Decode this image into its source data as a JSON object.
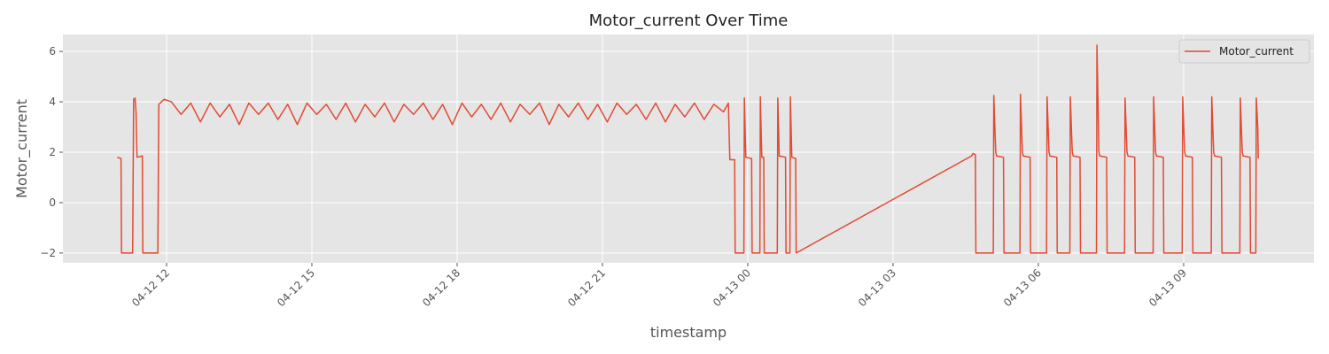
{
  "chart_data": {
    "type": "line",
    "title": "Motor_current Over Time",
    "xlabel": "timestamp",
    "ylabel": "Motor_current",
    "x": [
      10.98,
      11.06,
      11.07,
      11.3,
      11.32,
      11.35,
      11.37,
      11.39,
      11.5,
      11.51,
      11.82,
      11.84,
      11.95,
      12.1,
      12.3,
      12.5,
      12.7,
      12.9,
      13.1,
      13.3,
      13.5,
      13.7,
      13.9,
      14.1,
      14.3,
      14.5,
      14.7,
      14.9,
      15.1,
      15.3,
      15.5,
      15.7,
      15.9,
      16.1,
      16.3,
      16.5,
      16.7,
      16.9,
      17.1,
      17.3,
      17.5,
      17.7,
      17.9,
      18.1,
      18.3,
      18.5,
      18.7,
      18.9,
      19.1,
      19.3,
      19.5,
      19.7,
      19.9,
      20.1,
      20.3,
      20.5,
      20.7,
      20.9,
      21.1,
      21.3,
      21.5,
      21.7,
      21.9,
      22.1,
      22.3,
      22.5,
      22.7,
      22.9,
      23.1,
      23.3,
      23.5,
      23.6,
      23.63,
      23.73,
      23.74,
      23.92,
      23.93,
      23.96,
      24.08,
      24.09,
      24.25,
      24.26,
      24.29,
      24.33,
      24.34,
      24.61,
      24.62,
      24.65,
      24.78,
      24.79,
      24.87,
      24.88,
      24.91,
      24.99,
      25.0,
      28.62,
      28.65,
      28.7,
      28.71,
      29.07,
      29.08,
      29.12,
      29.14,
      29.28,
      29.29,
      29.62,
      29.63,
      29.67,
      29.69,
      29.83,
      29.84,
      30.17,
      30.18,
      30.22,
      30.24,
      30.38,
      30.39,
      30.65,
      30.66,
      30.7,
      30.72,
      30.86,
      30.87,
      31.2,
      31.21,
      31.25,
      31.27,
      31.41,
      31.42,
      31.78,
      31.79,
      31.83,
      31.85,
      31.99,
      32.0,
      32.37,
      32.38,
      32.42,
      32.44,
      32.58,
      32.59,
      32.97,
      32.98,
      33.02,
      33.04,
      33.18,
      33.19,
      33.57,
      33.58,
      33.62,
      33.64,
      33.78,
      33.79,
      34.16,
      34.17,
      34.21,
      34.23,
      34.37,
      34.38,
      34.49,
      34.5,
      34.53,
      34.54
    ],
    "series": [
      {
        "name": "Motor_current",
        "color": "#E24A33",
        "values": [
          1.8,
          1.75,
          -2,
          -2,
          4.1,
          4.15,
          3.6,
          1.8,
          1.85,
          -2,
          -2,
          3.9,
          4.1,
          4.0,
          3.5,
          3.95,
          3.2,
          3.95,
          3.4,
          3.9,
          3.1,
          3.95,
          3.5,
          3.95,
          3.3,
          3.9,
          3.1,
          3.95,
          3.5,
          3.9,
          3.3,
          3.95,
          3.2,
          3.9,
          3.4,
          3.95,
          3.2,
          3.9,
          3.5,
          3.95,
          3.3,
          3.9,
          3.1,
          3.95,
          3.4,
          3.9,
          3.3,
          3.95,
          3.2,
          3.9,
          3.5,
          3.95,
          3.1,
          3.9,
          3.4,
          3.95,
          3.3,
          3.9,
          3.2,
          3.95,
          3.5,
          3.9,
          3.3,
          3.95,
          3.2,
          3.9,
          3.4,
          3.95,
          3.3,
          3.9,
          3.6,
          3.95,
          1.7,
          1.7,
          -2,
          -2,
          4.15,
          1.8,
          1.75,
          -2,
          -2,
          4.2,
          1.8,
          1.8,
          -2,
          -2,
          4.15,
          1.85,
          1.8,
          -2,
          -2,
          4.2,
          1.8,
          1.75,
          -2,
          1.85,
          1.95,
          1.9,
          -2,
          -2,
          4.25,
          2.0,
          1.85,
          1.8,
          -2,
          -2,
          4.3,
          2.0,
          1.85,
          1.8,
          -2,
          -2,
          4.2,
          2.0,
          1.85,
          1.8,
          -2,
          -2,
          4.2,
          2.0,
          1.85,
          1.8,
          -2,
          -2,
          6.25,
          2.0,
          1.85,
          1.8,
          -2,
          -2,
          4.15,
          2.0,
          1.85,
          1.8,
          -2,
          -2,
          4.2,
          2.0,
          1.85,
          1.8,
          -2,
          -2,
          4.2,
          2.0,
          1.85,
          1.8,
          -2,
          -2,
          4.2,
          2.0,
          1.85,
          1.8,
          -2,
          -2,
          4.15,
          2.0,
          1.85,
          1.8,
          -2,
          -2,
          4.15,
          3.0,
          1.75
        ]
      }
    ],
    "xlim": [
      9.86,
      35.69
    ],
    "xticks": [
      {
        "value": 12,
        "label": "04-12 12"
      },
      {
        "value": 15,
        "label": "04-12 15"
      },
      {
        "value": 18,
        "label": "04-12 18"
      },
      {
        "value": 21,
        "label": "04-12 21"
      },
      {
        "value": 24,
        "label": "04-13 00"
      },
      {
        "value": 27,
        "label": "04-13 03"
      },
      {
        "value": 30,
        "label": "04-13 06"
      },
      {
        "value": 33,
        "label": "04-13 09"
      }
    ],
    "ylim": [
      -2.39,
      6.67
    ],
    "yticks": [
      {
        "value": -2,
        "label": "−2"
      },
      0,
      2,
      4,
      6
    ],
    "grid": true,
    "legend": "upper right"
  }
}
